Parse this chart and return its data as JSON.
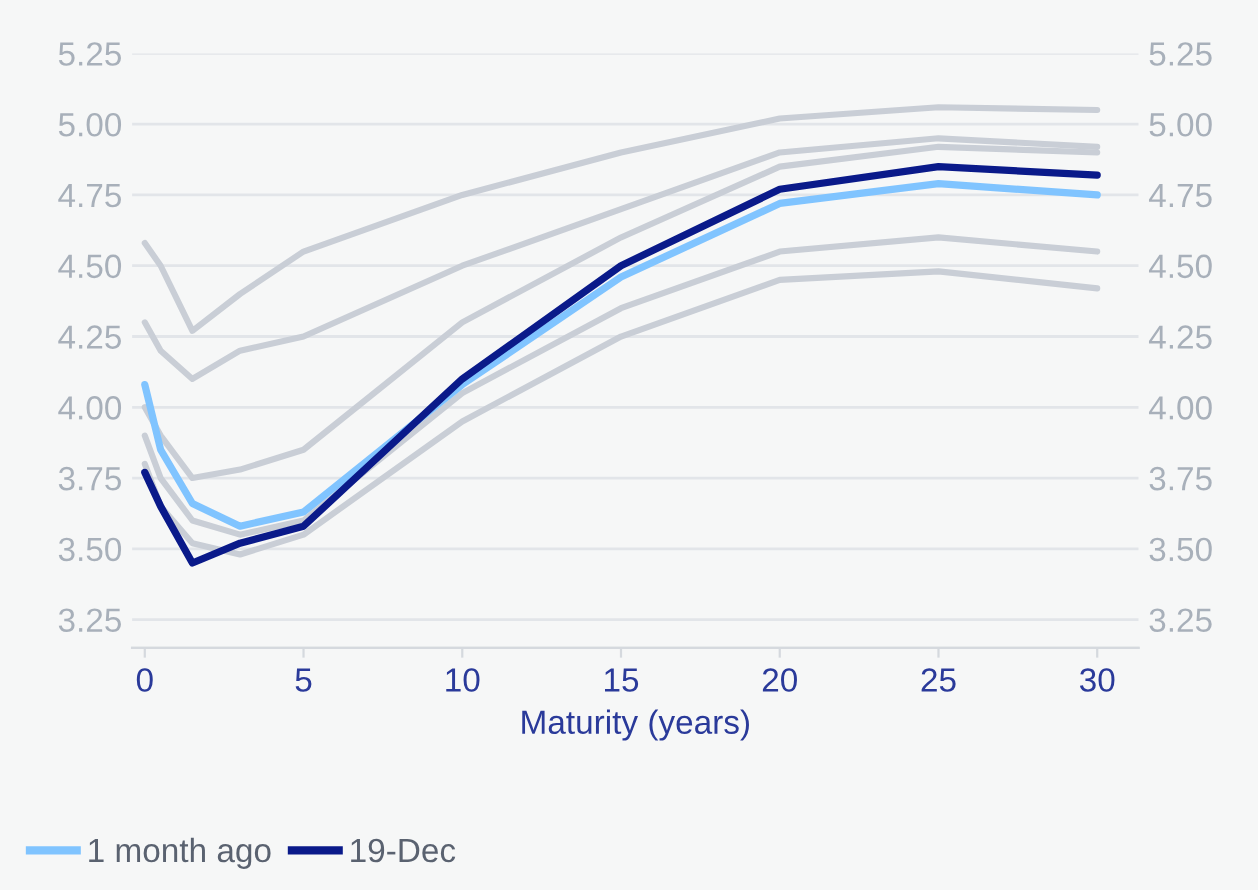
{
  "chart_data": {
    "type": "line",
    "xlabel": "Maturity (years)",
    "xlim": [
      -0.4,
      31.3
    ],
    "xticks": [
      0,
      5,
      10,
      15,
      20,
      25,
      30
    ],
    "ylim": [
      3.15,
      5.25
    ],
    "yticks": [
      5.25,
      {
        "value": 5.0,
        "label": "5.00"
      },
      4.75,
      {
        "value": 4.5,
        "label": "4.50"
      },
      4.25,
      {
        "value": 4.0,
        "label": "4.00"
      },
      3.75,
      {
        "value": 3.5,
        "label": "3.50"
      },
      3.25
    ],
    "y2lim": [
      3.15,
      5.25
    ],
    "y2ticks": [
      5.25,
      {
        "value": 5.0,
        "label": "5.00"
      },
      4.75,
      {
        "value": 4.5,
        "label": "4.50"
      },
      4.25,
      {
        "value": 4.0,
        "label": "4.00"
      },
      3.75,
      {
        "value": 3.5,
        "label": "3.50"
      },
      3.25
    ],
    "grid": "y",
    "legend": "bottom left",
    "marker": "none",
    "line_style": "solid",
    "x": [
      0,
      0.5,
      1.5,
      3,
      5,
      10,
      15,
      20,
      25,
      30
    ],
    "series": [
      {
        "color": "#c9ced6",
        "values": [
          4.58,
          4.5,
          4.27,
          4.4,
          4.55,
          4.75,
          4.9,
          5.02,
          5.06,
          5.05
        ]
      },
      {
        "color": "#c9ced6",
        "values": [
          4.3,
          4.2,
          4.1,
          4.2,
          4.25,
          4.5,
          4.7,
          4.9,
          4.95,
          4.92
        ]
      },
      {
        "color": "#c9ced6",
        "values": [
          4.0,
          3.9,
          3.75,
          3.78,
          3.85,
          4.3,
          4.6,
          4.85,
          4.92,
          4.9
        ]
      },
      {
        "color": "#c9ced6",
        "values": [
          3.9,
          3.75,
          3.6,
          3.55,
          3.6,
          4.05,
          4.35,
          4.55,
          4.6,
          4.55
        ]
      },
      {
        "color": "#c9ced6",
        "values": [
          3.8,
          3.65,
          3.52,
          3.48,
          3.55,
          3.95,
          4.25,
          4.45,
          4.48,
          4.42
        ]
      },
      {
        "name": "1 month ago",
        "color": "#80c4ff",
        "values": [
          4.08,
          3.85,
          3.66,
          3.58,
          3.63,
          4.08,
          4.46,
          4.72,
          4.79,
          4.75
        ]
      },
      {
        "name": "19-Dec",
        "color": "#0a1a8a",
        "values": [
          3.77,
          3.65,
          3.45,
          3.52,
          3.58,
          4.1,
          4.5,
          4.77,
          4.85,
          4.82
        ]
      }
    ]
  }
}
